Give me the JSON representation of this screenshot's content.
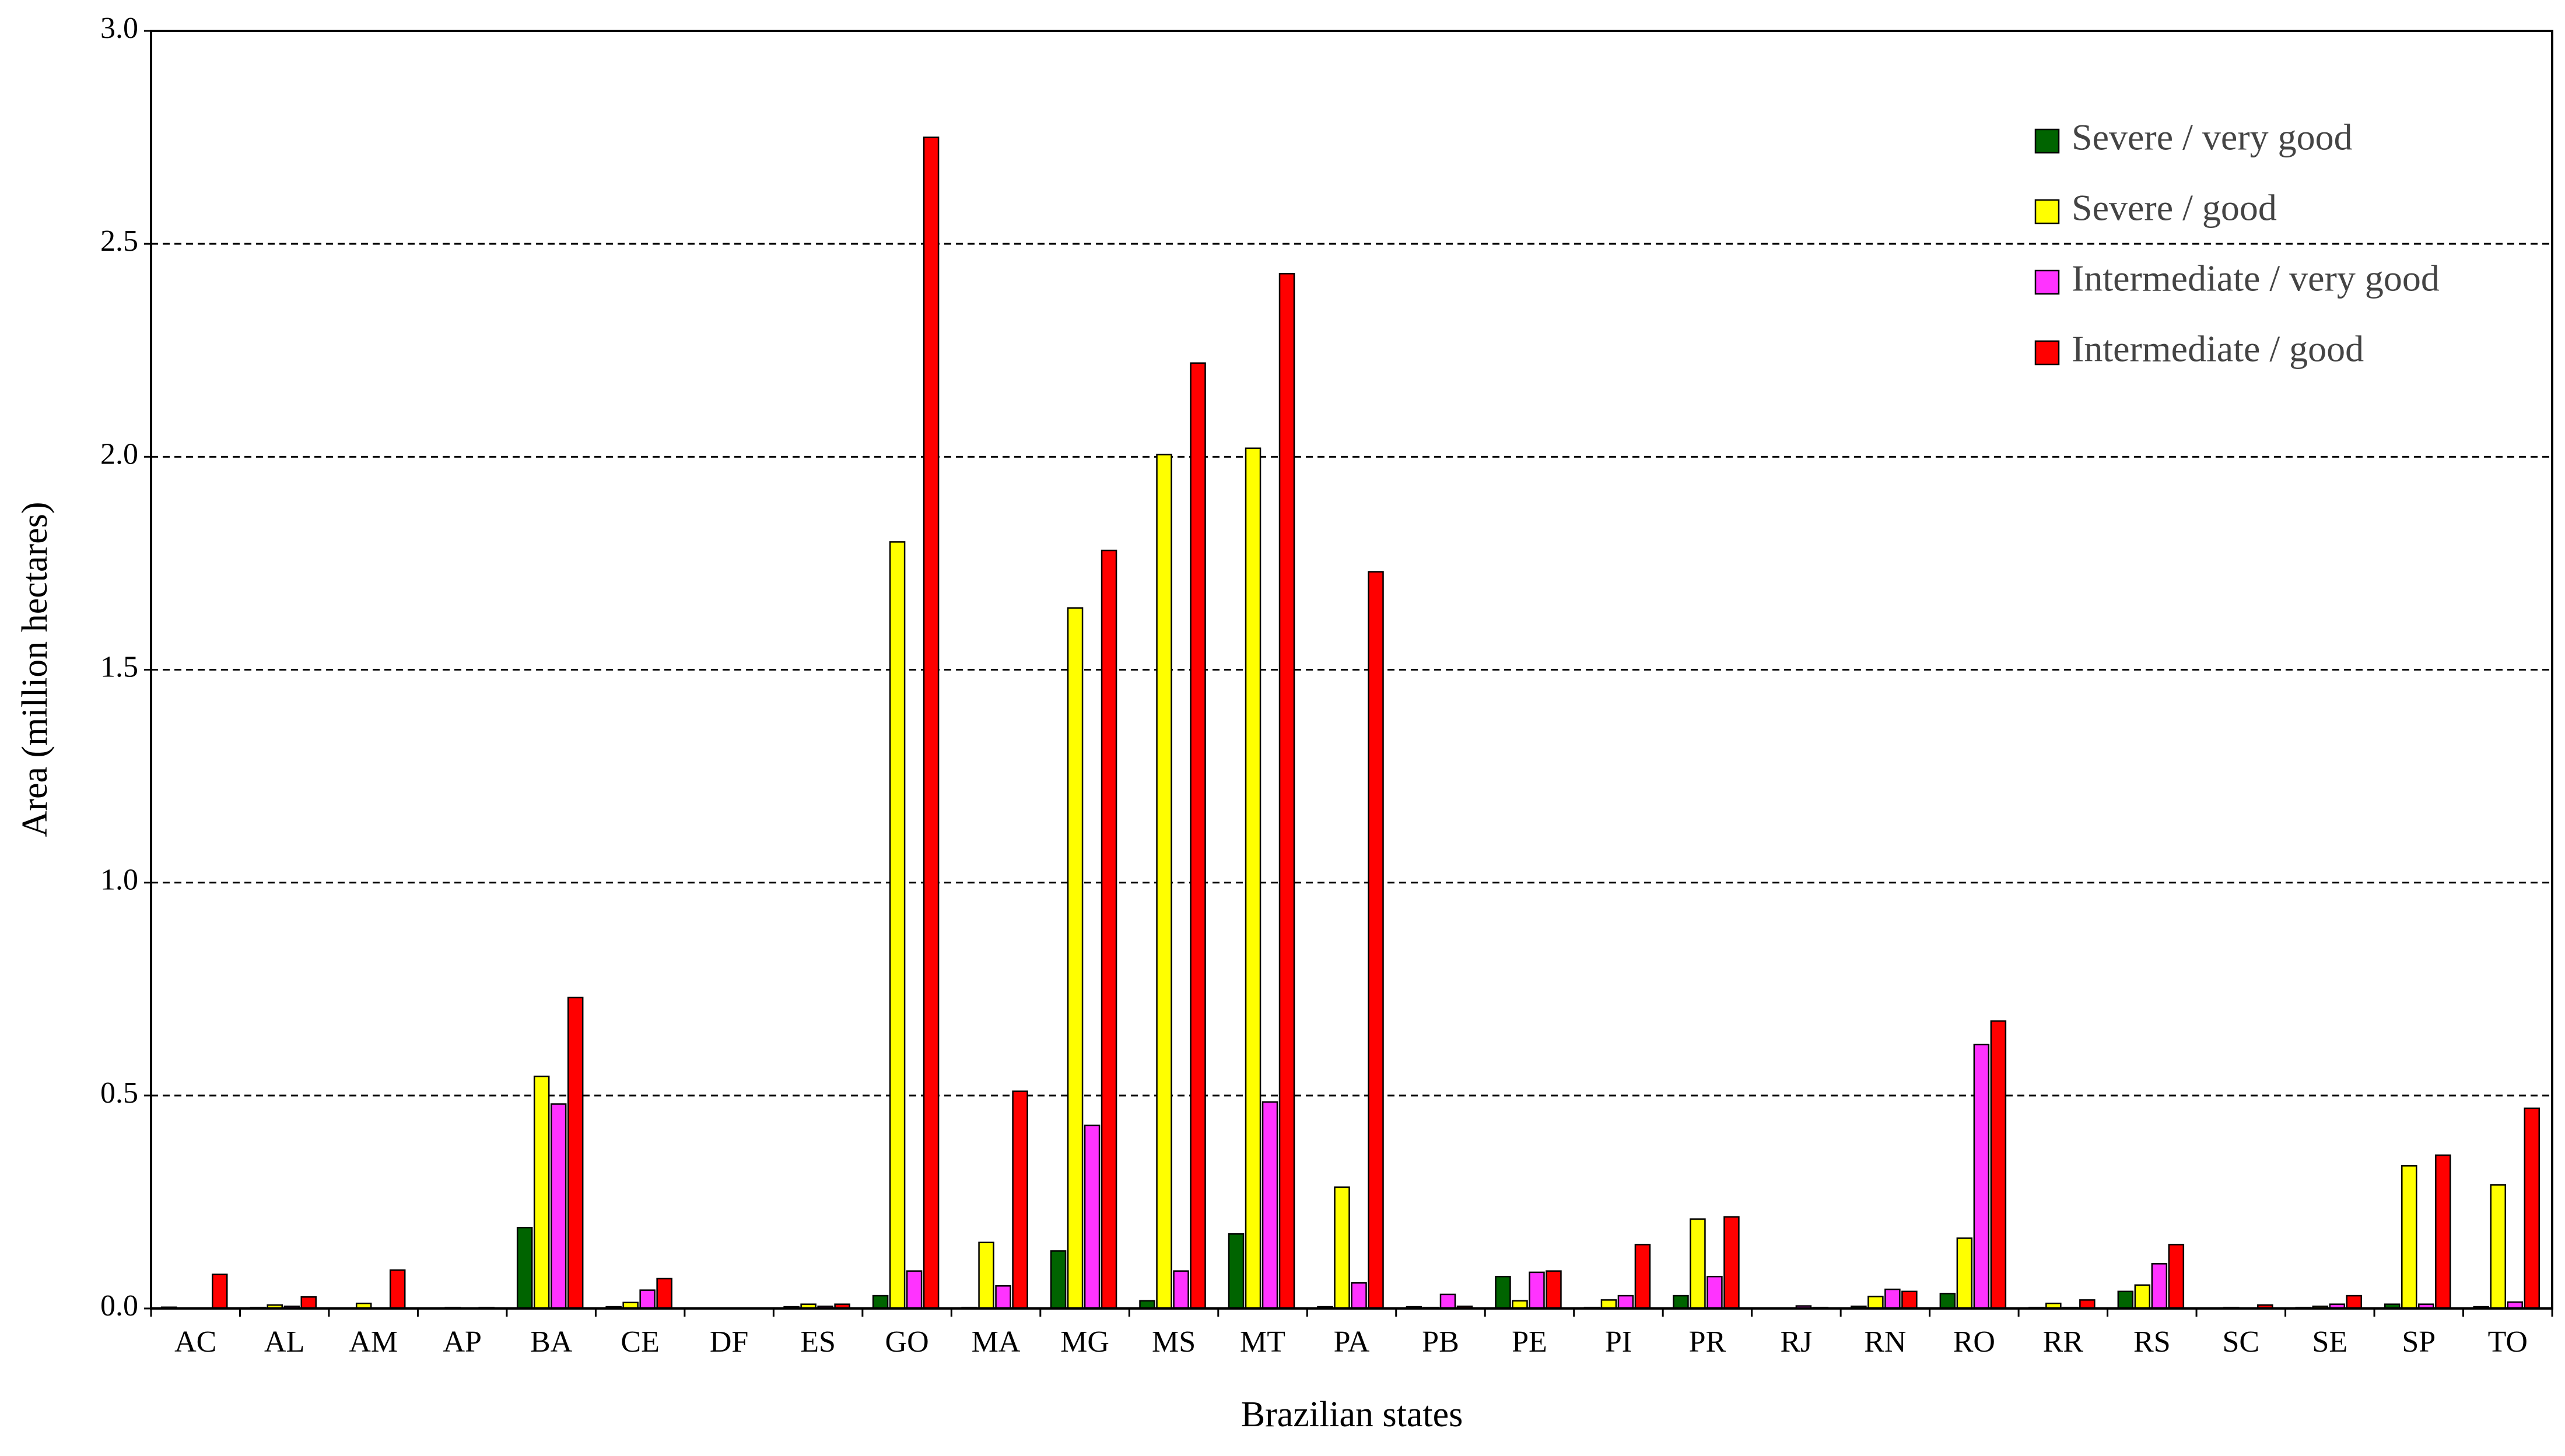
{
  "chart_data": {
    "type": "bar",
    "x_label": "Brazilian states",
    "y_label": "Area (million hectares)",
    "categories": [
      "AC",
      "AL",
      "AM",
      "AP",
      "BA",
      "CE",
      "DF",
      "ES",
      "GO",
      "MA",
      "MG",
      "MS",
      "MT",
      "PA",
      "PB",
      "PE",
      "PI",
      "PR",
      "RJ",
      "RN",
      "RO",
      "RR",
      "RS",
      "SC",
      "SE",
      "SP",
      "TO"
    ],
    "series": [
      {
        "name": "Severe / very good",
        "color": "#006400",
        "values": [
          0.003,
          0.002,
          0,
          0,
          0.19,
          0.004,
          0,
          0.004,
          0.03,
          0.002,
          0.135,
          0.018,
          0.175,
          0.004,
          0.004,
          0.075,
          0.002,
          0.03,
          0.001,
          0.005,
          0.035,
          0.002,
          0.04,
          0,
          0.002,
          0.01,
          0.004
        ]
      },
      {
        "name": "Severe / good",
        "color": "#ffff00",
        "values": [
          0,
          0.008,
          0.012,
          0.002,
          0.545,
          0.014,
          0.001,
          0.01,
          1.8,
          0.155,
          1.645,
          2.005,
          2.02,
          0.285,
          0.002,
          0.018,
          0.02,
          0.21,
          0.001,
          0.028,
          0.165,
          0.012,
          0.055,
          0.002,
          0.005,
          0.335,
          0.29
        ]
      },
      {
        "name": "Intermediate / very good",
        "color": "#ff33ff",
        "values": [
          0,
          0.005,
          0,
          0,
          0.48,
          0.043,
          0,
          0.005,
          0.088,
          0.053,
          0.43,
          0.088,
          0.485,
          0.06,
          0.033,
          0.085,
          0.03,
          0.075,
          0.006,
          0.045,
          0.62,
          0.002,
          0.105,
          0,
          0.01,
          0.01,
          0.015
        ]
      },
      {
        "name": "Intermediate / good",
        "color": "#ff0000",
        "values": [
          0.08,
          0.027,
          0.09,
          0.002,
          0.73,
          0.07,
          0.001,
          0.01,
          2.75,
          0.51,
          1.78,
          2.22,
          2.43,
          1.73,
          0.005,
          0.088,
          0.15,
          0.215,
          0.002,
          0.04,
          0.675,
          0.02,
          0.15,
          0.008,
          0.03,
          0.36,
          0.47
        ]
      }
    ],
    "ylim": [
      0,
      3
    ],
    "yticks": [
      {
        "value": 0,
        "label": "0.0"
      },
      0.5,
      {
        "value": 1,
        "label": "1.0"
      },
      1.5,
      {
        "value": 2,
        "label": "2.0"
      },
      2.5,
      {
        "value": 3,
        "label": "3.0"
      }
    ],
    "grid": true,
    "legend": "upper-right"
  }
}
